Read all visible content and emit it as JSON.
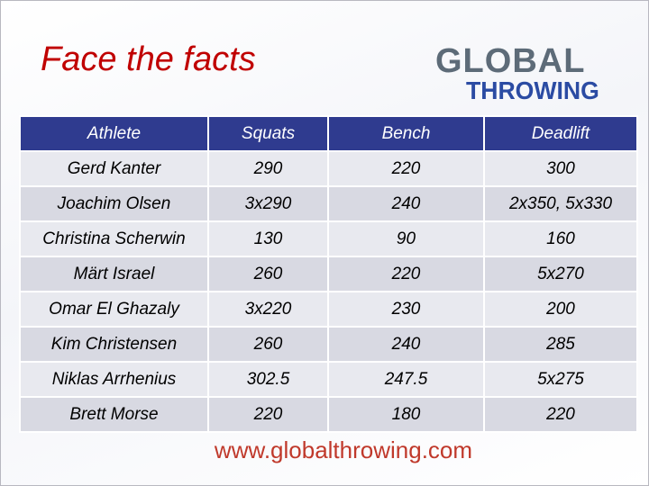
{
  "header": {
    "title": "Face the facts",
    "logo": {
      "line1": "GLOBAL",
      "line2": "THROWING"
    }
  },
  "table": {
    "columns": [
      "Athlete",
      "Squats",
      "Bench",
      "Deadlift"
    ],
    "rows": [
      [
        "Gerd Kanter",
        290,
        220,
        300
      ],
      [
        "Joachim Olsen",
        "3x290",
        240,
        "2x350, 5x330"
      ],
      [
        "Christina Scherwin",
        130,
        90,
        160
      ],
      [
        "Märt Israel",
        260,
        220,
        "5x270"
      ],
      [
        "Omar El Ghazaly",
        "3x220",
        230,
        200
      ],
      [
        "Kim Christensen",
        260,
        240,
        285
      ],
      [
        "Niklas Arrhenius",
        302.5,
        247.5,
        "5x275"
      ],
      [
        "Brett Morse",
        220,
        180,
        220
      ]
    ]
  },
  "footer": {
    "url": "www.globalthrowing.com"
  }
}
